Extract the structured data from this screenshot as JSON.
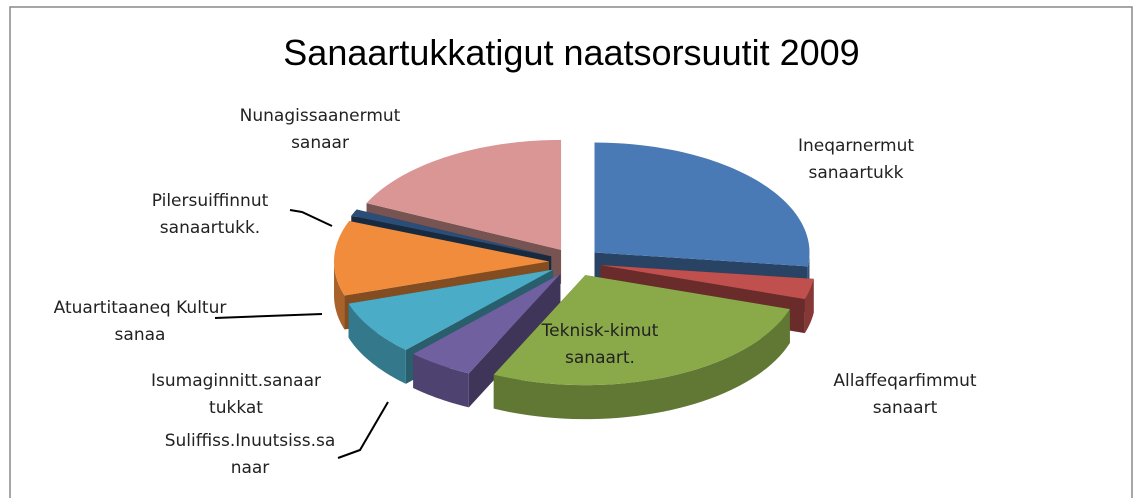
{
  "chart_data": {
    "type": "pie",
    "title": "Sanaartukkatigut naatsorsuutit 2009",
    "categories": [
      "Ineqarnermut sanaartukk",
      "Allaffeqarfimmut sanaart",
      "Teknisk-kimut sanaart.",
      "Suliffiss.Inuutsiss.sa naar",
      "Isumaginnitt.sanaar tukkat",
      "Atuartitaaneq Kultur sanaa",
      "Pilersuiffinnut sanaartukk.",
      "Nunagissaanermut sanaar"
    ],
    "values": [
      27,
      3,
      27,
      5,
      8,
      11,
      1,
      18
    ],
    "colors": [
      "#4a7ab5",
      "#c0504d",
      "#8aaa4a",
      "#7060a0",
      "#4aacc6",
      "#f08c3c",
      "#2c4d75",
      "#d99694"
    ]
  }
}
